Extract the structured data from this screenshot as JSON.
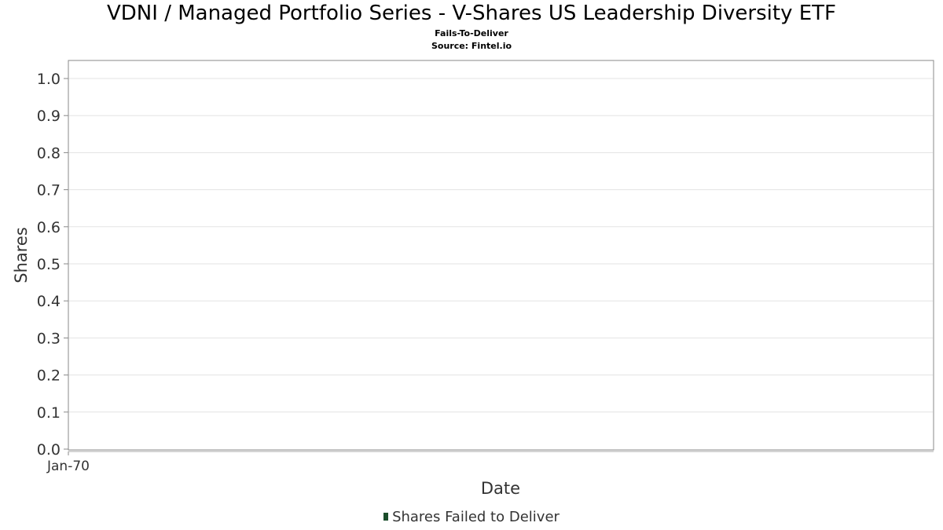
{
  "chart_data": {
    "type": "bar",
    "title": "VDNI / Managed Portfolio Series - V-Shares US Leadership Diversity ETF",
    "subtitle": "Fails-To-Deliver",
    "source": "Source: Fintel.io",
    "xlabel": "Date",
    "ylabel": "Shares",
    "ylim": [
      0,
      1.0
    ],
    "yticks": [
      "0.0",
      "0.1",
      "0.2",
      "0.3",
      "0.4",
      "0.5",
      "0.6",
      "0.7",
      "0.8",
      "0.9",
      "1.0"
    ],
    "xticks": [
      "Jan-70"
    ],
    "grid": true,
    "legend_position": "bottom",
    "series": [
      {
        "name": "Shares Failed to Deliver",
        "color": "#1b4d2b",
        "values": []
      }
    ]
  }
}
